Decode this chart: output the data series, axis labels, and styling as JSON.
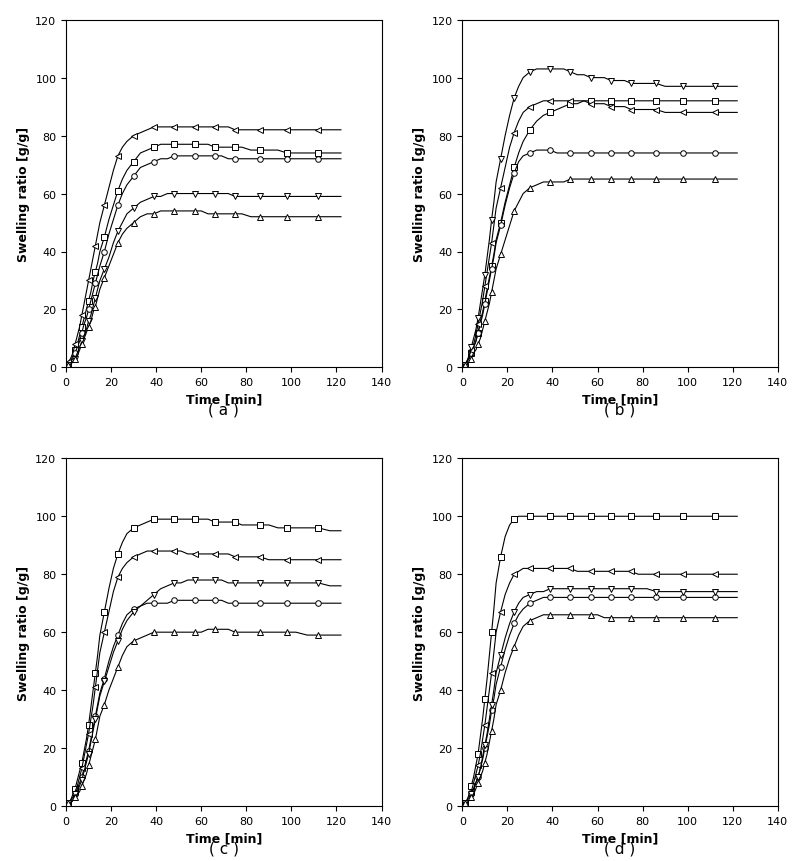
{
  "subplots": [
    "a",
    "b",
    "c",
    "d"
  ],
  "xlabel": "Time [min]",
  "ylabel": "Swelling ratio [g/g]",
  "xlim": [
    0,
    140
  ],
  "ylim": [
    0,
    120
  ],
  "xticks": [
    0,
    20,
    40,
    60,
    80,
    100,
    120,
    140
  ],
  "yticks": [
    0,
    20,
    40,
    60,
    80,
    100,
    120
  ],
  "time_points": [
    1,
    2,
    3,
    4,
    5,
    6,
    7,
    8,
    9,
    10,
    11,
    12,
    13,
    14,
    15,
    17,
    19,
    21,
    23,
    25,
    27,
    30,
    33,
    36,
    39,
    42,
    45,
    48,
    51,
    54,
    57,
    60,
    63,
    66,
    69,
    72,
    75,
    78,
    82,
    86,
    90,
    94,
    98,
    102,
    107,
    112,
    117,
    122
  ],
  "series": {
    "a": {
      "square": [
        1,
        2,
        4,
        6,
        8,
        11,
        14,
        17,
        20,
        23,
        26,
        30,
        33,
        36,
        40,
        45,
        51,
        56,
        61,
        65,
        68,
        71,
        74,
        75,
        76,
        77,
        77,
        77,
        77,
        77,
        77,
        77,
        77,
        76,
        76,
        76,
        76,
        76,
        75,
        75,
        75,
        75,
        74,
        74,
        74,
        74,
        74,
        74
      ],
      "circle": [
        1,
        2,
        3,
        5,
        7,
        9,
        12,
        15,
        17,
        20,
        23,
        26,
        29,
        32,
        35,
        40,
        46,
        51,
        56,
        60,
        63,
        66,
        69,
        70,
        71,
        72,
        72,
        73,
        73,
        73,
        73,
        73,
        73,
        73,
        73,
        72,
        72,
        72,
        72,
        72,
        72,
        72,
        72,
        72,
        72,
        72,
        72,
        72
      ],
      "left_tri": [
        2,
        3,
        5,
        8,
        11,
        14,
        18,
        22,
        26,
        30,
        34,
        38,
        42,
        46,
        50,
        56,
        62,
        68,
        73,
        76,
        78,
        80,
        81,
        82,
        83,
        83,
        83,
        83,
        83,
        83,
        83,
        83,
        83,
        83,
        83,
        83,
        82,
        82,
        82,
        82,
        82,
        82,
        82,
        82,
        82,
        82,
        82,
        82
      ],
      "down_tri": [
        1,
        1,
        2,
        3,
        5,
        7,
        9,
        11,
        13,
        16,
        18,
        21,
        24,
        27,
        30,
        34,
        38,
        43,
        47,
        50,
        53,
        55,
        57,
        58,
        59,
        59,
        60,
        60,
        60,
        60,
        60,
        60,
        60,
        60,
        60,
        60,
        59,
        59,
        59,
        59,
        59,
        59,
        59,
        59,
        59,
        59,
        59,
        59
      ],
      "up_tri": [
        1,
        1,
        2,
        3,
        4,
        6,
        8,
        10,
        12,
        14,
        16,
        19,
        21,
        24,
        27,
        31,
        35,
        39,
        43,
        46,
        48,
        50,
        52,
        53,
        53,
        54,
        54,
        54,
        54,
        54,
        54,
        54,
        53,
        53,
        53,
        53,
        53,
        53,
        52,
        52,
        52,
        52,
        52,
        52,
        52,
        52,
        52,
        52
      ]
    },
    "b": {
      "square": [
        1,
        2,
        3,
        5,
        7,
        9,
        12,
        16,
        19,
        23,
        27,
        31,
        35,
        39,
        44,
        50,
        57,
        63,
        69,
        74,
        78,
        82,
        85,
        87,
        88,
        89,
        90,
        91,
        91,
        92,
        92,
        92,
        92,
        92,
        92,
        92,
        92,
        92,
        92,
        92,
        92,
        92,
        92,
        92,
        92,
        92,
        92,
        92
      ],
      "circle": [
        1,
        2,
        3,
        5,
        7,
        9,
        12,
        15,
        18,
        22,
        26,
        30,
        34,
        38,
        43,
        49,
        56,
        62,
        67,
        71,
        73,
        74,
        75,
        75,
        75,
        74,
        74,
        74,
        74,
        74,
        74,
        74,
        74,
        74,
        74,
        74,
        74,
        74,
        74,
        74,
        74,
        74,
        74,
        74,
        74,
        74,
        74,
        74
      ],
      "left_tri": [
        1,
        2,
        4,
        6,
        8,
        11,
        15,
        19,
        23,
        28,
        33,
        38,
        43,
        49,
        55,
        62,
        69,
        76,
        81,
        85,
        88,
        90,
        91,
        92,
        92,
        92,
        92,
        92,
        92,
        92,
        91,
        91,
        91,
        90,
        90,
        90,
        89,
        89,
        89,
        89,
        88,
        88,
        88,
        88,
        88,
        88,
        88,
        88
      ],
      "down_tri": [
        1,
        2,
        4,
        7,
        10,
        13,
        17,
        22,
        27,
        32,
        38,
        44,
        51,
        57,
        64,
        72,
        80,
        87,
        93,
        97,
        100,
        102,
        103,
        103,
        103,
        103,
        103,
        102,
        101,
        101,
        100,
        100,
        100,
        99,
        99,
        99,
        98,
        98,
        98,
        98,
        97,
        97,
        97,
        97,
        97,
        97,
        97,
        97
      ],
      "up_tri": [
        1,
        1,
        2,
        3,
        5,
        6,
        8,
        10,
        13,
        16,
        19,
        22,
        26,
        30,
        34,
        39,
        44,
        49,
        54,
        57,
        60,
        62,
        63,
        64,
        64,
        64,
        64,
        65,
        65,
        65,
        65,
        65,
        65,
        65,
        65,
        65,
        65,
        65,
        65,
        65,
        65,
        65,
        65,
        65,
        65,
        65,
        65,
        65
      ]
    },
    "c": {
      "square": [
        1,
        2,
        4,
        6,
        9,
        12,
        15,
        19,
        23,
        28,
        34,
        40,
        46,
        52,
        59,
        67,
        75,
        82,
        87,
        91,
        94,
        96,
        97,
        98,
        99,
        99,
        99,
        99,
        99,
        99,
        99,
        99,
        99,
        98,
        98,
        98,
        98,
        97,
        97,
        97,
        97,
        96,
        96,
        96,
        96,
        96,
        95,
        95
      ],
      "circle": [
        1,
        1,
        2,
        4,
        6,
        8,
        10,
        13,
        16,
        19,
        23,
        27,
        31,
        35,
        39,
        44,
        50,
        55,
        59,
        63,
        66,
        68,
        69,
        70,
        70,
        70,
        70,
        71,
        71,
        71,
        71,
        71,
        71,
        71,
        71,
        70,
        70,
        70,
        70,
        70,
        70,
        70,
        70,
        70,
        70,
        70,
        70,
        70
      ],
      "left_tri": [
        1,
        2,
        3,
        5,
        7,
        10,
        13,
        17,
        21,
        25,
        30,
        35,
        41,
        47,
        53,
        60,
        67,
        74,
        79,
        82,
        84,
        86,
        87,
        88,
        88,
        88,
        88,
        88,
        88,
        87,
        87,
        87,
        87,
        87,
        87,
        87,
        86,
        86,
        86,
        86,
        85,
        85,
        85,
        85,
        85,
        85,
        85,
        85
      ],
      "down_tri": [
        1,
        1,
        2,
        4,
        5,
        7,
        9,
        12,
        15,
        18,
        22,
        26,
        30,
        34,
        38,
        43,
        48,
        53,
        57,
        61,
        64,
        67,
        69,
        71,
        73,
        75,
        76,
        77,
        77,
        78,
        78,
        78,
        78,
        78,
        78,
        77,
        77,
        77,
        77,
        77,
        77,
        77,
        77,
        77,
        77,
        77,
        76,
        76
      ],
      "up_tri": [
        1,
        1,
        2,
        3,
        4,
        5,
        7,
        9,
        11,
        14,
        17,
        20,
        23,
        27,
        31,
        35,
        40,
        44,
        48,
        52,
        55,
        57,
        58,
        59,
        60,
        60,
        60,
        60,
        60,
        60,
        60,
        60,
        61,
        61,
        61,
        61,
        60,
        60,
        60,
        60,
        60,
        60,
        60,
        60,
        59,
        59,
        59,
        59
      ]
    },
    "d": {
      "square": [
        1,
        2,
        4,
        7,
        10,
        14,
        18,
        24,
        30,
        37,
        44,
        52,
        60,
        68,
        77,
        86,
        93,
        97,
        99,
        100,
        100,
        100,
        100,
        100,
        100,
        100,
        100,
        100,
        100,
        100,
        100,
        100,
        100,
        100,
        100,
        100,
        100,
        100,
        100,
        100,
        100,
        100,
        100,
        100,
        100,
        100,
        100,
        100
      ],
      "circle": [
        1,
        1,
        2,
        4,
        6,
        8,
        10,
        13,
        16,
        20,
        24,
        28,
        33,
        37,
        42,
        48,
        54,
        59,
        63,
        66,
        68,
        70,
        71,
        72,
        72,
        72,
        72,
        72,
        72,
        72,
        72,
        72,
        72,
        72,
        72,
        72,
        72,
        72,
        72,
        72,
        72,
        72,
        72,
        72,
        72,
        72,
        72,
        72
      ],
      "left_tri": [
        1,
        2,
        3,
        5,
        8,
        11,
        14,
        18,
        23,
        28,
        34,
        40,
        46,
        53,
        60,
        67,
        73,
        77,
        80,
        81,
        82,
        82,
        82,
        82,
        82,
        82,
        82,
        82,
        81,
        81,
        81,
        81,
        81,
        81,
        81,
        81,
        81,
        80,
        80,
        80,
        80,
        80,
        80,
        80,
        80,
        80,
        80,
        80
      ],
      "down_tri": [
        1,
        1,
        2,
        4,
        6,
        8,
        10,
        13,
        17,
        21,
        25,
        30,
        35,
        40,
        46,
        52,
        58,
        63,
        67,
        70,
        72,
        73,
        74,
        74,
        75,
        75,
        75,
        75,
        75,
        75,
        75,
        75,
        75,
        75,
        75,
        75,
        75,
        75,
        75,
        74,
        74,
        74,
        74,
        74,
        74,
        74,
        74,
        74
      ],
      "up_tri": [
        1,
        1,
        2,
        3,
        4,
        6,
        8,
        10,
        12,
        15,
        18,
        22,
        26,
        30,
        35,
        40,
        46,
        51,
        55,
        59,
        62,
        64,
        65,
        66,
        66,
        66,
        66,
        66,
        66,
        66,
        66,
        66,
        65,
        65,
        65,
        65,
        65,
        65,
        65,
        65,
        65,
        65,
        65,
        65,
        65,
        65,
        65,
        65
      ]
    }
  },
  "marker_styles": [
    "s",
    "o",
    "<",
    "v",
    "^"
  ],
  "marker_size": 4,
  "marker_every": 3,
  "line_color": "#000000",
  "marker_face_color": "white",
  "linewidth": 0.8,
  "label_fontsize": 9,
  "tick_fontsize": 8,
  "subplot_label_fontsize": 11,
  "background_color": "#ffffff",
  "subplot_labels": [
    "( a )",
    "( b )",
    "( c )",
    "( d )"
  ]
}
